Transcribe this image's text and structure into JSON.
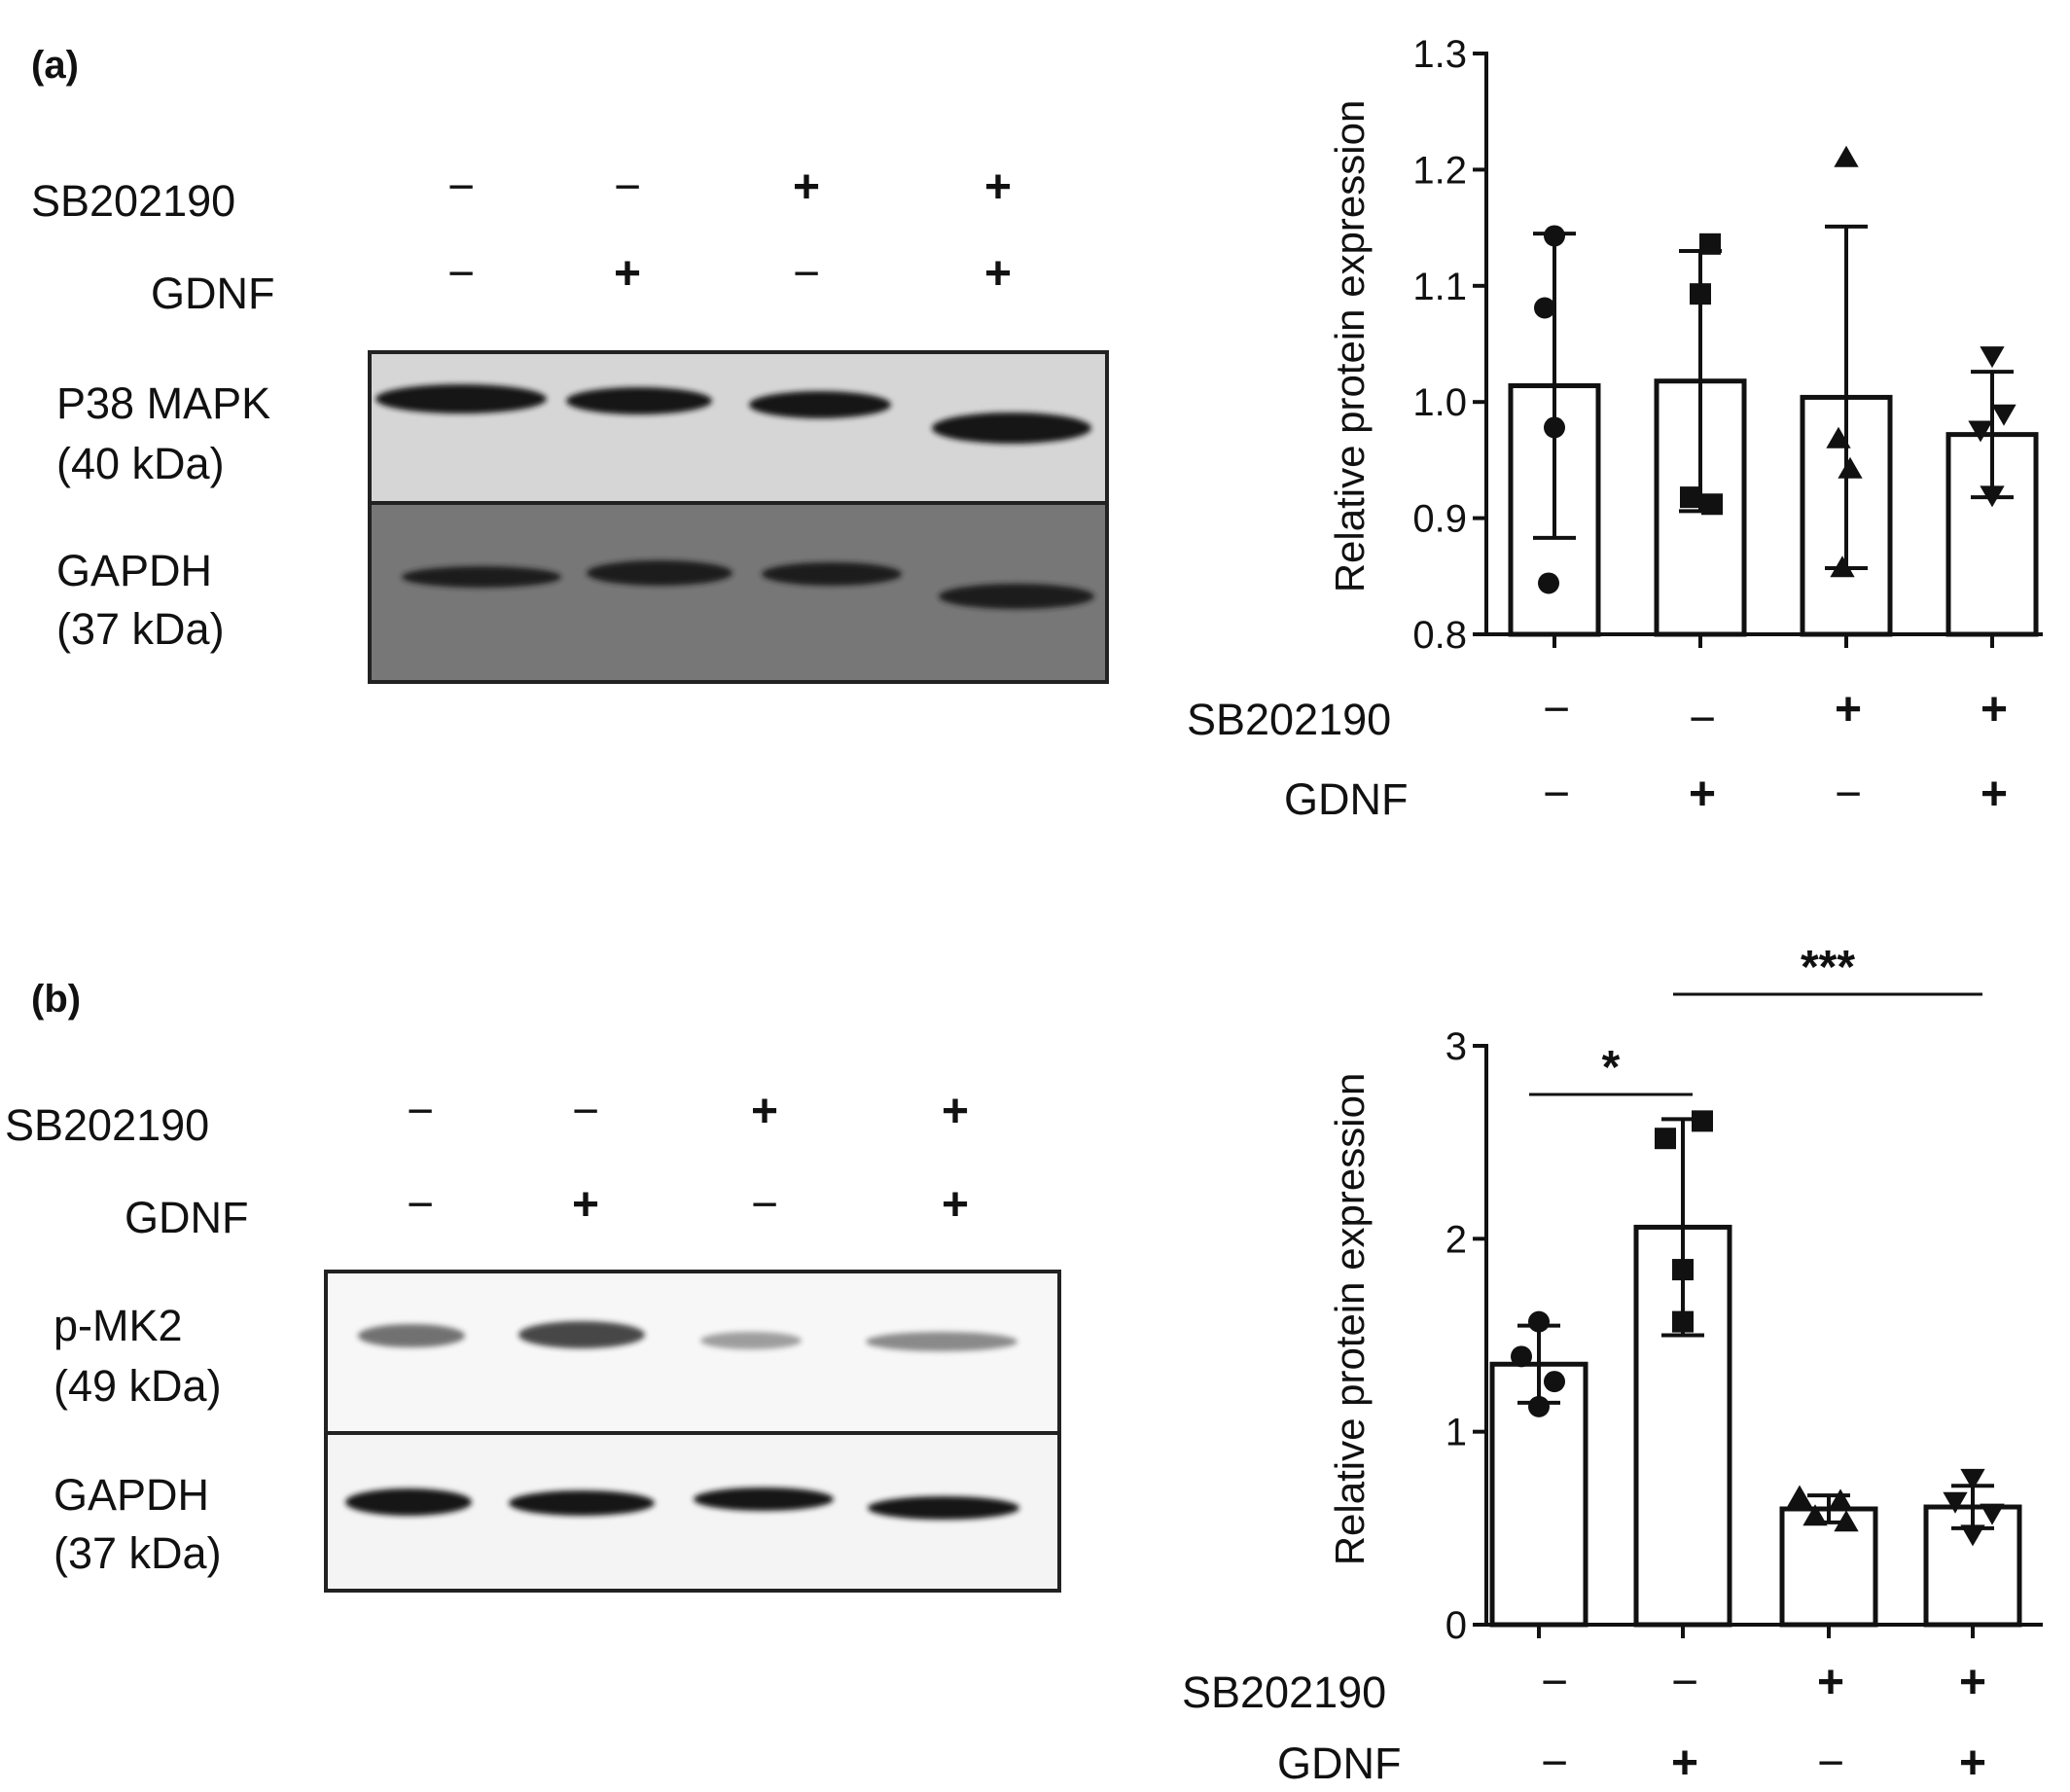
{
  "panels": [
    {
      "label": "(a)",
      "blot": {
        "treatment_rows": [
          {
            "name": "SB202190",
            "signs": [
              "−",
              "−",
              "+",
              "+"
            ]
          },
          {
            "name": "GDNF",
            "signs": [
              "−",
              "+",
              "−",
              "+"
            ]
          }
        ],
        "bands": [
          {
            "name": "P38 MAPK",
            "size": "(40 kDa)",
            "background": "#d6d6d6",
            "intensity": [
              1.0,
              0.95,
              0.95,
              1.0
            ]
          },
          {
            "name": "GAPDH",
            "size": "(37 kDa)",
            "background": "#777777",
            "intensity": [
              0.85,
              0.9,
              0.9,
              0.85
            ]
          }
        ]
      },
      "chart_treatments": [
        {
          "name": "SB202190",
          "signs": [
            "−",
            "−",
            "+",
            "+"
          ]
        },
        {
          "name": "GDNF",
          "signs": [
            "−",
            "+",
            "−",
            "+"
          ]
        }
      ],
      "significance": []
    },
    {
      "label": "(b)",
      "blot": {
        "treatment_rows": [
          {
            "name": "SB202190",
            "signs": [
              "−",
              "−",
              "+",
              "+"
            ]
          },
          {
            "name": "GDNF",
            "signs": [
              "−",
              "+",
              "−",
              "+"
            ]
          }
        ],
        "bands": [
          {
            "name": "p-MK2",
            "size": "(49 kDa)",
            "background": "#f7f7f7",
            "intensity": [
              0.65,
              0.8,
              0.3,
              0.45
            ]
          },
          {
            "name": "GAPDH",
            "size": "(37 kDa)",
            "background": "#f4f4f4",
            "intensity": [
              0.9,
              0.88,
              0.85,
              0.85
            ]
          }
        ]
      },
      "chart_treatments": [
        {
          "name": "SB202190",
          "signs": [
            "−",
            "−",
            "+",
            "+"
          ]
        },
        {
          "name": "GDNF",
          "signs": [
            "−",
            "+",
            "−",
            "+"
          ]
        }
      ],
      "significance": [
        {
          "from_group": 0,
          "to_group": 1,
          "label": "*"
        },
        {
          "from_group": 1,
          "to_group": 3,
          "label": "***"
        }
      ]
    }
  ],
  "chart_data": [
    {
      "type": "bar",
      "ylabel": "Relative protein expression",
      "ylim": [
        0.8,
        1.3
      ],
      "yticks": [
        0.8,
        0.9,
        1.0,
        1.1,
        1.2,
        1.3
      ],
      "ytick_labels": [
        "0.8",
        "0.9",
        "1.0",
        "1.1",
        "1.2",
        "1.3"
      ],
      "groups": [
        {
          "mean": 1.014,
          "sd": 0.131,
          "marker": "circle",
          "points": [
            1.143,
            1.081,
            0.978,
            0.844
          ]
        },
        {
          "mean": 1.018,
          "sd": 0.112,
          "marker": "square",
          "points": [
            1.136,
            1.093,
            0.918,
            0.912
          ]
        },
        {
          "mean": 1.004,
          "sd": 0.147,
          "marker": "triangle",
          "points": [
            1.21,
            0.968,
            0.942,
            0.857
          ]
        },
        {
          "mean": 0.972,
          "sd": 0.054,
          "marker": "triangle-down",
          "points": [
            1.04,
            0.99,
            0.976,
            0.92
          ]
        }
      ]
    },
    {
      "type": "bar",
      "ylabel": "Relative protein expression",
      "ylim": [
        0,
        3
      ],
      "yticks": [
        0,
        1,
        2,
        3
      ],
      "ytick_labels": [
        "0",
        "1",
        "2",
        "3"
      ],
      "groups": [
        {
          "mean": 1.35,
          "sd": 0.2,
          "marker": "circle",
          "points": [
            1.57,
            1.39,
            1.26,
            1.13
          ]
        },
        {
          "mean": 2.06,
          "sd": 0.56,
          "marker": "square",
          "points": [
            2.61,
            2.52,
            1.84,
            1.57
          ]
        },
        {
          "mean": 0.6,
          "sd": 0.07,
          "marker": "triangle",
          "points": [
            0.66,
            0.64,
            0.56,
            0.53
          ]
        },
        {
          "mean": 0.61,
          "sd": 0.11,
          "marker": "triangle-down",
          "points": [
            0.76,
            0.64,
            0.58,
            0.47
          ]
        }
      ]
    }
  ]
}
